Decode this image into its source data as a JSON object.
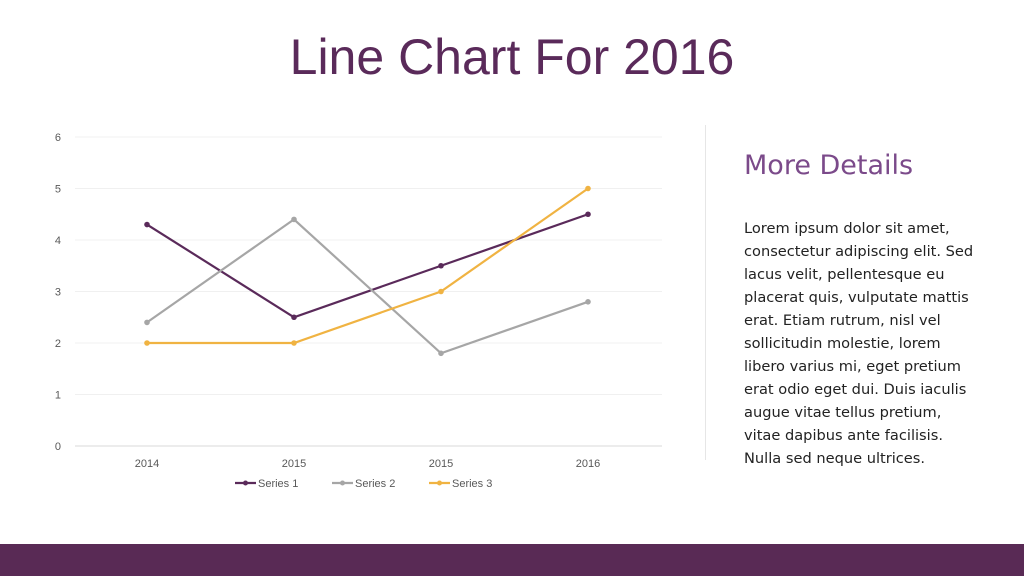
{
  "title": "Line Chart For 2016",
  "details": {
    "heading": "More Details",
    "lines": [
      "Lorem ipsum dolor sit amet,",
      "consectetur adipiscing elit. Sed",
      "lacus velit, pellentesque eu",
      "placerat quis, vulputate mattis",
      "erat. Etiam rutrum, nisl vel",
      "sollicitudin molestie, lorem",
      "libero varius mi, eget pretium",
      "erat odio eget dui. Duis iaculis",
      "augue vitae tellus pretium,",
      "vitae dapibus ante facilisis.",
      "Nulla sed neque ultrices."
    ]
  },
  "colors": {
    "accent": "#592a55",
    "heading": "#7b4a8a"
  },
  "chart_data": {
    "type": "line",
    "title": "",
    "categories": [
      "2014",
      "2015",
      "2015",
      "2016"
    ],
    "yticks": [
      "0",
      "1",
      "2",
      "3",
      "4",
      "5",
      "6"
    ],
    "ylim": [
      0,
      6
    ],
    "grid": true,
    "legend_position": "bottom",
    "series": [
      {
        "name": "Series 1",
        "values": [
          4.3,
          2.5,
          3.5,
          4.5
        ],
        "color": "#5a2a5a"
      },
      {
        "name": "Series 2",
        "values": [
          2.4,
          4.4,
          1.8,
          2.8
        ],
        "color": "#a6a6a6"
      },
      {
        "name": "Series 3",
        "values": [
          2,
          2,
          3,
          5
        ],
        "color": "#f0b342"
      }
    ]
  }
}
